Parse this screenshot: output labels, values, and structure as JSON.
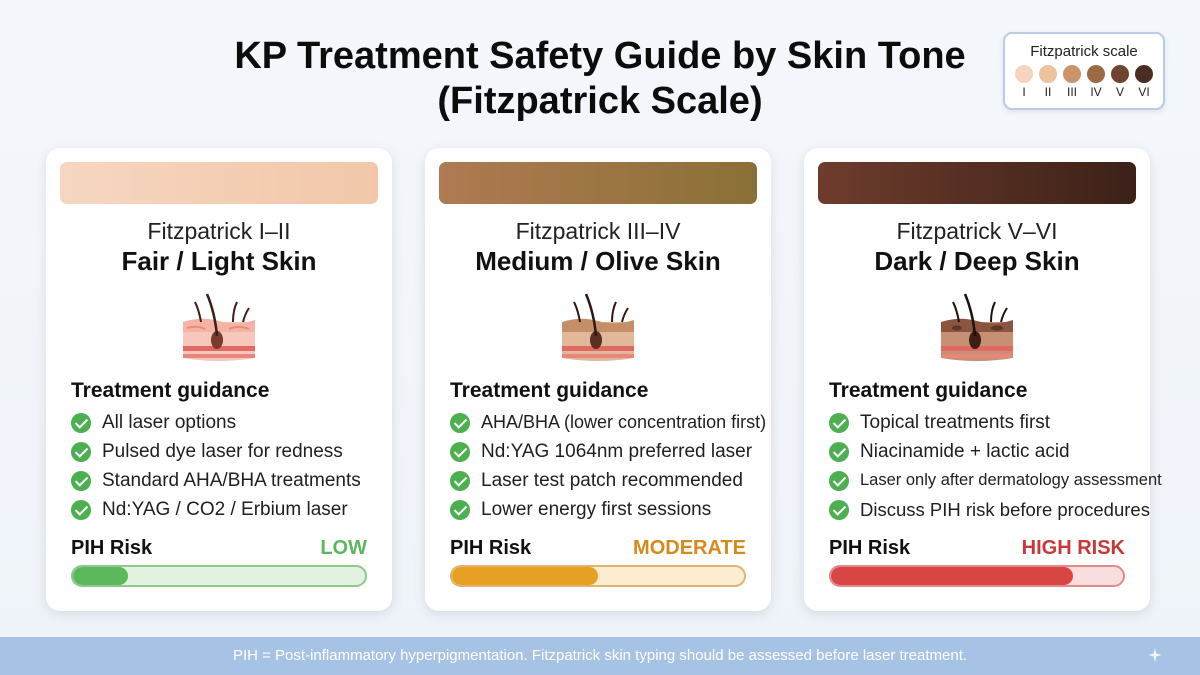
{
  "title_line1": "KP Treatment Safety Guide by Skin Tone",
  "title_line2": "(Fitzpatrick Scale)",
  "legend": {
    "title": "Fitzpatrick scale",
    "types": [
      {
        "label": "I",
        "color": "#f5d3bd"
      },
      {
        "label": "II",
        "color": "#ecc29f"
      },
      {
        "label": "III",
        "color": "#c9946a"
      },
      {
        "label": "IV",
        "color": "#9c6a45"
      },
      {
        "label": "V",
        "color": "#6f4530"
      },
      {
        "label": "VI",
        "color": "#4a2d22"
      }
    ]
  },
  "cards": [
    {
      "range": "Fitzpatrick I–II",
      "heading": "Fair / Light Skin",
      "swatch_colors": [
        "#f6d6c1",
        "#f2c7a9"
      ],
      "guidance_title": "Treatment guidance",
      "items": [
        "All laser options",
        "Pulsed dye laser for redness",
        "Standard AHA/BHA treatments",
        "Nd:YAG / CO2 / Erbium laser"
      ],
      "risk_label": "PIH Risk",
      "risk_level": "LOW",
      "risk_fraction": 0.19,
      "risk_color": "#5cb85c",
      "risk_track_color": "#e3f2e1",
      "risk_border_color": "#8cc98a",
      "risk_text_color": "#5cb85c"
    },
    {
      "range": "Fitzpatrick III–IV",
      "heading": "Medium / Olive Skin",
      "swatch_colors": [
        "#b07a52",
        "#8a7036"
      ],
      "guidance_title": "Treatment guidance",
      "items": [
        "AHA/BHA (lower concentration first)",
        "Nd:YAG 1064nm preferred laser",
        "Laser test patch recommended",
        "Lower energy first sessions"
      ],
      "risk_label": "PIH Risk",
      "risk_level": "MODERATE",
      "risk_fraction": 0.5,
      "risk_color": "#e8a024",
      "risk_track_color": "#fbecd2",
      "risk_border_color": "#e0b46a",
      "risk_text_color": "#d58b1c"
    },
    {
      "range": "Fitzpatrick V–VI",
      "heading": "Dark / Deep Skin",
      "swatch_colors": [
        "#6e3c2c",
        "#3c2118"
      ],
      "guidance_title": "Treatment guidance",
      "items": [
        "Topical treatments first",
        "Niacinamide + lactic acid",
        "Laser only after dermatology assessment",
        "Discuss PIH risk before procedures"
      ],
      "risk_label": "PIH Risk",
      "risk_level": "HIGH RISK",
      "risk_fraction": 0.83,
      "risk_color": "#d94545",
      "risk_track_color": "#f8dede",
      "risk_border_color": "#e08a8a",
      "risk_text_color": "#c93838"
    }
  ],
  "footer": "PIH = Post-inflammatory hyperpigmentation. Fitzpatrick skin typing should be assessed before laser treatment."
}
